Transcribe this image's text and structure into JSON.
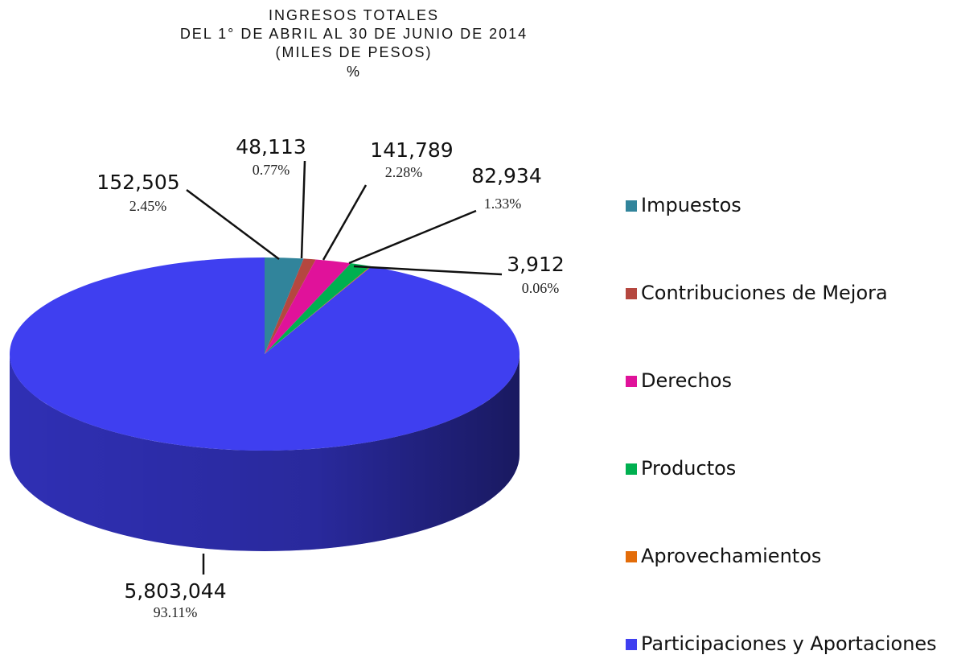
{
  "chart_data": {
    "type": "pie",
    "title": [
      "INGRESOS TOTALES",
      "DEL 1° DE ABRIL AL 30 DE JUNIO DE 2014",
      "(MILES DE PESOS)",
      "%"
    ],
    "categories": [
      "Impuestos",
      "Contribuciones de Mejora",
      "Derechos",
      "Productos",
      "Aprovechamientos",
      "Participaciones y Aportaciones"
    ],
    "values": [
      152505,
      48113,
      141789,
      82934,
      3912,
      5803044
    ],
    "value_labels": [
      "152,505",
      "48,113",
      "141,789",
      "82,934",
      "3,912",
      "5,803,044"
    ],
    "percentages": [
      2.45,
      0.77,
      2.28,
      1.33,
      0.06,
      93.11
    ],
    "percentage_labels": [
      "2.45%",
      "0.77%",
      "2.28%",
      "1.33%",
      "0.06%",
      "93.11%"
    ],
    "colors": [
      "#31849b",
      "#b5473f",
      "#e0129a",
      "#00b050",
      "#e36c09",
      "#3f3ff0"
    ],
    "legend": "right"
  }
}
